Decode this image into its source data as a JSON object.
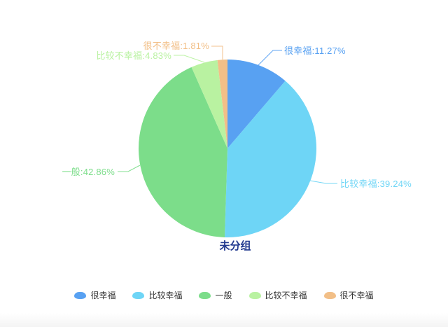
{
  "chart_data": {
    "type": "pie",
    "title": "未分组",
    "title_color": "#223a8f",
    "legend_position": "bottom",
    "legend_text_color": "#333333",
    "background_color": "#ffffff",
    "slices": [
      {
        "name": "很幸福",
        "value": 11.27,
        "label_display": "很幸福:11.27%",
        "color": "#58a1f2"
      },
      {
        "name": "比较幸福",
        "value": 39.24,
        "label_display": "比较幸福:39.24%",
        "color": "#6ed5f6"
      },
      {
        "name": "一般",
        "value": 42.86,
        "label_display": "一般:42.86%",
        "color": "#7cdd8a"
      },
      {
        "name": "比较不幸福",
        "value": 4.83,
        "label_display": "比较不幸福:4.83%",
        "color": "#b9f2a1"
      },
      {
        "name": "很不幸福",
        "value": 1.81,
        "label_display": "很不幸福:1.81%",
        "color": "#f2bf87"
      }
    ]
  }
}
